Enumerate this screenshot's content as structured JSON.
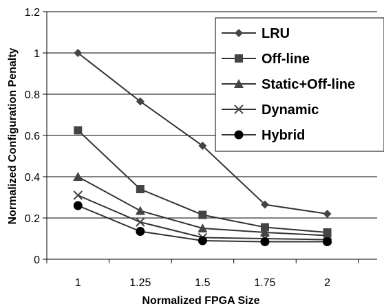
{
  "chart_data": {
    "type": "line",
    "xlabel": "Normalized FPGA Size",
    "ylabel": "Normalized Configuration Penalty",
    "x": [
      1,
      1.25,
      1.5,
      1.75,
      2
    ],
    "x_tick_labels": [
      "1",
      "1.25",
      "1.5",
      "1.75",
      "2"
    ],
    "ylim": [
      0,
      1.2
    ],
    "y_ticks": [
      0,
      0.2,
      0.4,
      0.6,
      0.8,
      1,
      1.2
    ],
    "y_tick_labels": [
      "0",
      "0.2",
      "0.4",
      "0.6",
      "0.8",
      "1",
      "1.2"
    ],
    "grid": "horizontal",
    "legend_position": "top-right",
    "series": [
      {
        "name": "LRU",
        "marker": "diamond",
        "values": [
          1.0,
          0.765,
          0.55,
          0.265,
          0.22
        ]
      },
      {
        "name": "Off-line",
        "marker": "square",
        "values": [
          0.625,
          0.34,
          0.215,
          0.155,
          0.13
        ]
      },
      {
        "name": "Static+Off-line",
        "marker": "triangle",
        "values": [
          0.4,
          0.235,
          0.15,
          0.13,
          0.115
        ]
      },
      {
        "name": "Dynamic",
        "marker": "x",
        "values": [
          0.31,
          0.18,
          0.105,
          0.1,
          0.095
        ]
      },
      {
        "name": "Hybrid",
        "marker": "circle",
        "values": [
          0.26,
          0.135,
          0.09,
          0.085,
          0.085
        ]
      }
    ],
    "colors": {
      "line": "#333333",
      "marker": "#444444",
      "grid": "#000000",
      "background": "#ffffff"
    }
  }
}
